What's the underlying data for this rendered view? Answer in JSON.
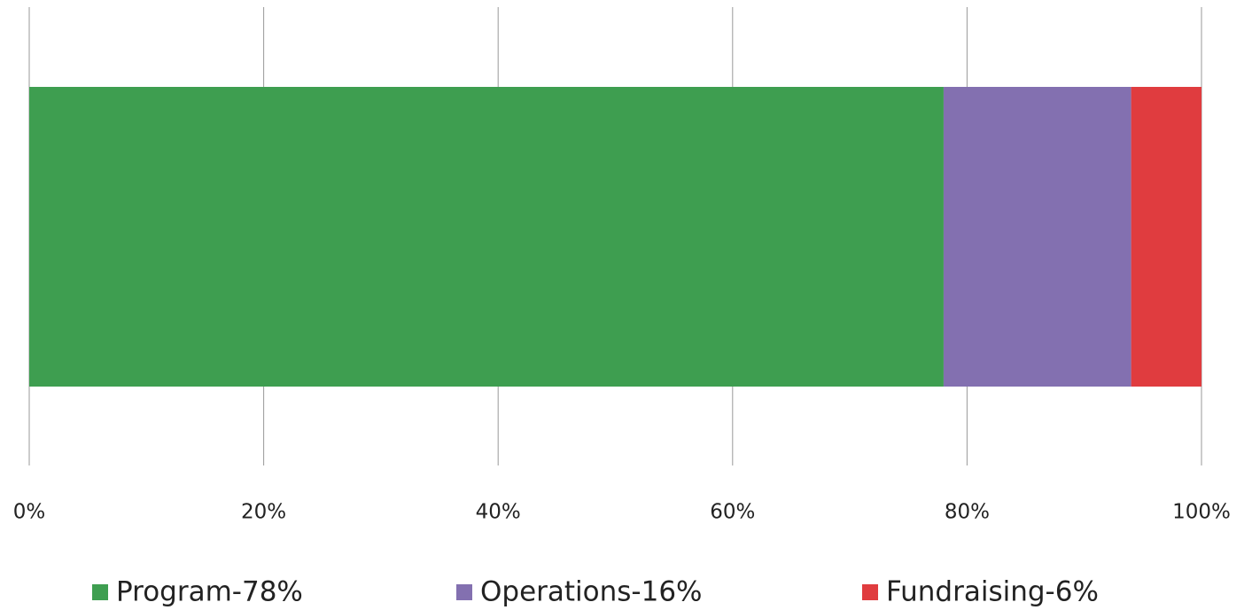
{
  "chart_data": {
    "type": "bar",
    "orientation": "horizontal",
    "stacked": true,
    "categories": [
      null
    ],
    "series": [
      {
        "name": "Program-78%",
        "color": "#3e9e50",
        "values": [
          78
        ]
      },
      {
        "name": "Operations-16%",
        "color": "#8370b0",
        "values": [
          16
        ]
      },
      {
        "name": "Fundraising-6%",
        "color": "#e03c3f",
        "values": [
          6
        ]
      }
    ],
    "xlim": [
      0,
      100
    ],
    "xticks": [
      {
        "value": 0,
        "label": "0%"
      },
      {
        "value": 20,
        "label": "20%"
      },
      {
        "value": 40,
        "label": "40%"
      },
      {
        "value": 60,
        "label": "60%"
      },
      {
        "value": 80,
        "label": "80%"
      },
      {
        "value": 100,
        "label": "100%"
      }
    ],
    "grid": true,
    "legend": "bottom"
  }
}
